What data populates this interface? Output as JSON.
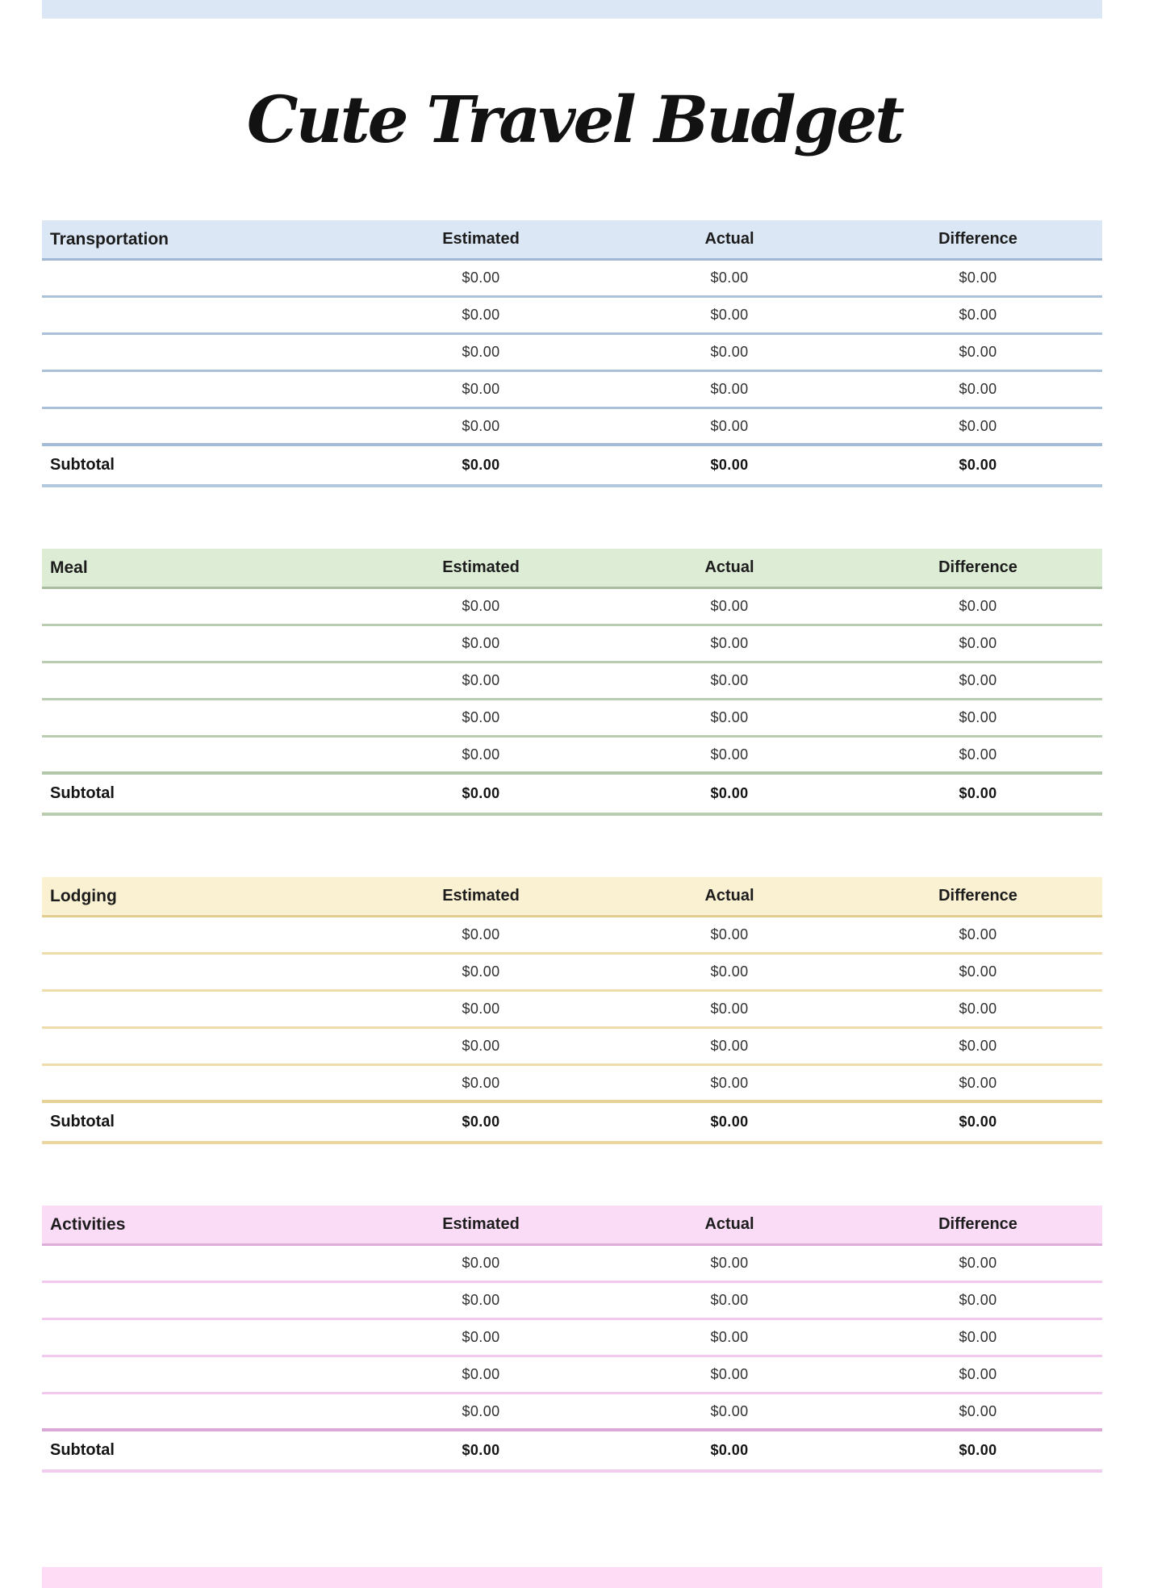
{
  "page": {
    "title": "Cute Travel Budget",
    "top_bar_color": "#dbe7f5",
    "bottom_bar_color": "#fedcf5",
    "background": "#ffffff"
  },
  "columns": [
    "Estimated",
    "Actual",
    "Difference"
  ],
  "subtotal_label": "Subtotal",
  "tables": [
    {
      "category": "Transportation",
      "theme": {
        "header_bg": "#dbe7f5",
        "header_line": "#9fb7d3",
        "row_line": "#abc1d9",
        "subtotal_line": "#a3bbd6",
        "bottom_line": "#b3c9de"
      },
      "rows": [
        [
          "$0.00",
          "$0.00",
          "$0.00"
        ],
        [
          "$0.00",
          "$0.00",
          "$0.00"
        ],
        [
          "$0.00",
          "$0.00",
          "$0.00"
        ],
        [
          "$0.00",
          "$0.00",
          "$0.00"
        ],
        [
          "$0.00",
          "$0.00",
          "$0.00"
        ]
      ],
      "subtotal": [
        "$0.00",
        "$0.00",
        "$0.00"
      ]
    },
    {
      "category": "Meal",
      "theme": {
        "header_bg": "#ddecd5",
        "header_line": "#a8bd9e",
        "row_line": "#bacdb3",
        "subtotal_line": "#b2c6aa",
        "bottom_line": "#b9ccb2"
      },
      "rows": [
        [
          "$0.00",
          "$0.00",
          "$0.00"
        ],
        [
          "$0.00",
          "$0.00",
          "$0.00"
        ],
        [
          "$0.00",
          "$0.00",
          "$0.00"
        ],
        [
          "$0.00",
          "$0.00",
          "$0.00"
        ],
        [
          "$0.00",
          "$0.00",
          "$0.00"
        ]
      ],
      "subtotal": [
        "$0.00",
        "$0.00",
        "$0.00"
      ]
    },
    {
      "category": "Lodging",
      "theme": {
        "header_bg": "#faf0d2",
        "header_line": "#e2cc90",
        "row_line": "#eedcab",
        "subtotal_line": "#e6d196",
        "bottom_line": "#e9d6a1"
      },
      "rows": [
        [
          "$0.00",
          "$0.00",
          "$0.00"
        ],
        [
          "$0.00",
          "$0.00",
          "$0.00"
        ],
        [
          "$0.00",
          "$0.00",
          "$0.00"
        ],
        [
          "$0.00",
          "$0.00",
          "$0.00"
        ],
        [
          "$0.00",
          "$0.00",
          "$0.00"
        ]
      ],
      "subtotal": [
        "$0.00",
        "$0.00",
        "$0.00"
      ]
    },
    {
      "category": "Activities",
      "theme": {
        "header_bg": "#fbdcf7",
        "header_line": "#dcadd9",
        "row_line": "#f2c8ee",
        "subtotal_line": "#d9a8d6",
        "bottom_line": "#f0cdec"
      },
      "rows": [
        [
          "$0.00",
          "$0.00",
          "$0.00"
        ],
        [
          "$0.00",
          "$0.00",
          "$0.00"
        ],
        [
          "$0.00",
          "$0.00",
          "$0.00"
        ],
        [
          "$0.00",
          "$0.00",
          "$0.00"
        ],
        [
          "$0.00",
          "$0.00",
          "$0.00"
        ]
      ],
      "subtotal": [
        "$0.00",
        "$0.00",
        "$0.00"
      ]
    }
  ]
}
